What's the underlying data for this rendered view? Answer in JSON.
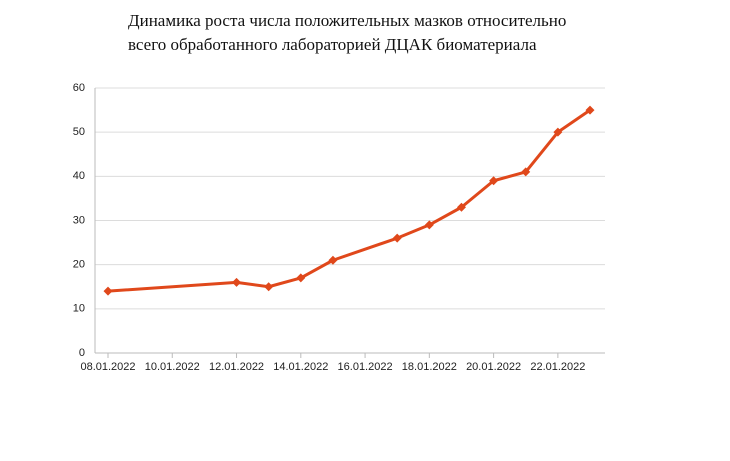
{
  "chart_data": {
    "type": "line",
    "title": [
      "Динамика роста числа положительных мазков относительно",
      "всего обработанного лабораторией ДЦАК биоматериала"
    ],
    "x": [
      "2022-01-08",
      "2022-01-12",
      "2022-01-13",
      "2022-01-14",
      "2022-01-15",
      "2022-01-17",
      "2022-01-18",
      "2022-01-19",
      "2022-01-20",
      "2022-01-21",
      "2022-01-22",
      "2022-01-23"
    ],
    "series": [
      {
        "color": "#e0481b",
        "values": [
          14,
          16,
          15,
          17,
          21,
          26,
          29,
          33,
          39,
          41,
          50,
          55
        ]
      }
    ],
    "xlim": [
      "2022-01-08",
      "2022-01-23"
    ],
    "xticks": [
      {
        "value": "2022-01-08",
        "label": "08.01.2022"
      },
      {
        "value": "2022-01-10",
        "label": "10.01.2022"
      },
      {
        "value": "2022-01-12",
        "label": "12.01.2022"
      },
      {
        "value": "2022-01-14",
        "label": "14.01.2022"
      },
      {
        "value": "2022-01-16",
        "label": "16.01.2022"
      },
      {
        "value": "2022-01-18",
        "label": "18.01.2022"
      },
      {
        "value": "2022-01-20",
        "label": "20.01.2022"
      },
      {
        "value": "2022-01-22",
        "label": "22.01.2022"
      }
    ],
    "ylim": [
      0,
      60
    ],
    "yticks": [
      0,
      10,
      20,
      30,
      40,
      50,
      60
    ],
    "grid": true
  }
}
